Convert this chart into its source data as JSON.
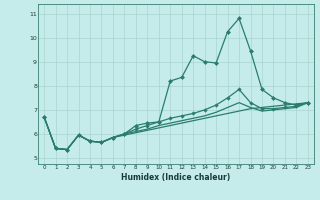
{
  "x": [
    0,
    1,
    2,
    3,
    4,
    5,
    6,
    7,
    8,
    9,
    10,
    11,
    12,
    13,
    14,
    15,
    16,
    17,
    18,
    19,
    20,
    21,
    22,
    23
  ],
  "line_jagged": [
    6.7,
    5.4,
    5.35,
    5.95,
    5.7,
    5.65,
    5.85,
    6.0,
    6.35,
    6.45,
    6.5,
    8.2,
    8.35,
    9.25,
    9.0,
    8.95,
    10.25,
    10.8,
    9.45,
    7.85,
    7.5,
    7.3,
    7.2,
    7.3
  ],
  "line_diag": [
    6.7,
    5.4,
    5.35,
    5.95,
    5.7,
    5.65,
    5.85,
    6.0,
    6.2,
    6.35,
    6.5,
    6.65,
    6.75,
    6.85,
    7.0,
    7.2,
    7.5,
    7.85,
    7.3,
    7.05,
    7.05,
    7.1,
    7.15,
    7.3
  ],
  "line_lower1": [
    6.7,
    5.4,
    5.35,
    5.95,
    5.7,
    5.65,
    5.85,
    5.95,
    6.05,
    6.15,
    6.25,
    6.35,
    6.45,
    6.55,
    6.65,
    6.75,
    6.85,
    6.95,
    7.05,
    7.1,
    7.15,
    7.2,
    7.25,
    7.3
  ],
  "line_lower2": [
    6.7,
    5.4,
    5.35,
    5.95,
    5.7,
    5.65,
    5.85,
    6.0,
    6.1,
    6.2,
    6.35,
    6.45,
    6.55,
    6.65,
    6.75,
    6.9,
    7.1,
    7.3,
    7.1,
    6.95,
    7.0,
    7.05,
    7.1,
    7.3
  ],
  "color": "#2a7d6e",
  "bg_color": "#c5ecea",
  "grid_color": "#a8d4cf",
  "xlabel": "Humidex (Indice chaleur)",
  "yticks": [
    5,
    6,
    7,
    8,
    9,
    10,
    11
  ],
  "ylim": [
    4.75,
    11.4
  ],
  "xlim": [
    -0.5,
    23.5
  ],
  "marker": "D",
  "markersize": 2.5,
  "lw": 0.9
}
